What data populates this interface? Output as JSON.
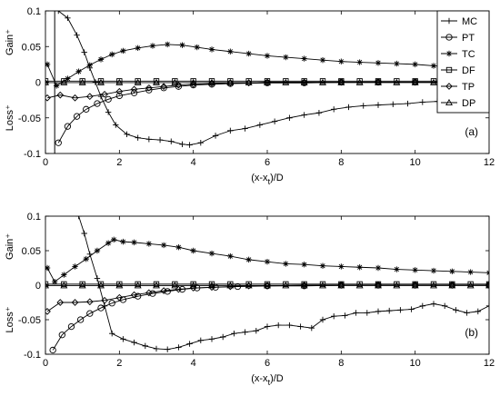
{
  "chart_data": [
    {
      "type": "line",
      "panel_label": "(a)",
      "xlabel": "(x-x_t)/D",
      "ylabel_top": "Gain⁺",
      "ylabel_bottom": "Loss⁺",
      "xlim": [
        0,
        12
      ],
      "ylim": [
        -0.1,
        0.1
      ],
      "xticks": [
        0,
        2,
        4,
        6,
        8,
        10,
        12
      ],
      "yticks": [
        -0.1,
        -0.05,
        0,
        0.05,
        0.1
      ],
      "ytick_labels": [
        "-0.1",
        "-0.05",
        "0",
        "0.05",
        "0.1"
      ],
      "grid": false,
      "legend_position": "top-right",
      "vertical_line_x": 0.25,
      "series": [
        {
          "name": "MC",
          "marker": "plus",
          "x": [
            0.35,
            0.6,
            0.85,
            1.05,
            1.2,
            1.35,
            1.5,
            1.7,
            1.9,
            2.2,
            2.5,
            2.8,
            3.1,
            3.4,
            3.7,
            3.9,
            4.2,
            4.6,
            5.0,
            5.4,
            5.8,
            6.2,
            6.6,
            7.0,
            7.4,
            7.8,
            8.2,
            8.6,
            9.0,
            9.4,
            9.8,
            10.2,
            10.6,
            11.0,
            11.4,
            11.8,
            12.0
          ],
          "y": [
            0.1,
            0.09,
            0.066,
            0.042,
            0.02,
            0.0,
            -0.02,
            -0.042,
            -0.06,
            -0.073,
            -0.078,
            -0.08,
            -0.081,
            -0.083,
            -0.087,
            -0.088,
            -0.085,
            -0.075,
            -0.068,
            -0.065,
            -0.06,
            -0.055,
            -0.05,
            -0.046,
            -0.043,
            -0.038,
            -0.035,
            -0.033,
            -0.032,
            -0.031,
            -0.03,
            -0.028,
            -0.027,
            -0.028,
            -0.028,
            -0.03,
            -0.032
          ]
        },
        {
          "name": "PT",
          "marker": "circle",
          "x": [
            0.35,
            0.6,
            0.85,
            1.1,
            1.4,
            1.7,
            2.0,
            2.4,
            2.8,
            3.2,
            3.6,
            4.0,
            4.5,
            5.0,
            6.0,
            7.0,
            8.0,
            9.0,
            10.0,
            11.0,
            12.0
          ],
          "y": [
            -0.085,
            -0.062,
            -0.048,
            -0.038,
            -0.03,
            -0.024,
            -0.019,
            -0.015,
            -0.011,
            -0.008,
            -0.006,
            -0.004,
            -0.003,
            -0.002,
            -0.001,
            -0.001,
            0.0,
            0.0,
            0.0,
            0.0,
            0.0
          ]
        },
        {
          "name": "TC",
          "marker": "asterisk",
          "x": [
            0.05,
            0.3,
            0.6,
            0.9,
            1.2,
            1.5,
            1.8,
            2.1,
            2.5,
            2.9,
            3.3,
            3.7,
            4.1,
            4.5,
            5.0,
            5.5,
            6.0,
            6.5,
            7.0,
            7.5,
            8.0,
            8.5,
            9.0,
            9.5,
            10.0,
            10.5,
            11.0,
            11.5,
            12.0
          ],
          "y": [
            0.025,
            -0.005,
            0.005,
            0.015,
            0.024,
            0.032,
            0.039,
            0.044,
            0.048,
            0.051,
            0.053,
            0.052,
            0.049,
            0.046,
            0.043,
            0.04,
            0.037,
            0.035,
            0.033,
            0.031,
            0.029,
            0.028,
            0.027,
            0.026,
            0.025,
            0.023,
            0.021,
            0.019,
            0.017
          ]
        },
        {
          "name": "DF",
          "marker": "square",
          "x": [
            0,
            0.5,
            1,
            1.5,
            2,
            2.5,
            3,
            3.5,
            4,
            4.5,
            5,
            5.5,
            6,
            6.5,
            7,
            7.5,
            8,
            8.5,
            9,
            9.5,
            10,
            10.5,
            11,
            11.5,
            12
          ],
          "y": [
            0.0015,
            0.0015,
            0.0015,
            0.0015,
            0.0015,
            0.0015,
            0.0015,
            0.0015,
            0.0015,
            0.0015,
            0.0015,
            0.0015,
            0.0015,
            0.0015,
            0.0015,
            0.0015,
            0.0015,
            0.0015,
            0.0015,
            0.0015,
            0.0015,
            0.0015,
            0.0015,
            0.0015,
            0.0015
          ]
        },
        {
          "name": "TP",
          "marker": "diamond",
          "x": [
            0.05,
            0.4,
            0.8,
            1.2,
            1.6,
            2.0,
            2.4,
            2.8,
            3.2,
            3.6,
            4.0,
            4.5,
            5.0,
            5.5,
            6.0,
            7.0,
            8.0,
            9.0,
            10.0,
            11.0,
            12.0
          ],
          "y": [
            -0.022,
            -0.018,
            -0.022,
            -0.02,
            -0.017,
            -0.013,
            -0.01,
            -0.008,
            -0.006,
            -0.004,
            -0.003,
            -0.002,
            -0.001,
            -0.001,
            0.0,
            0.0,
            0.0,
            0.0,
            0.0,
            0.0,
            0.0
          ]
        },
        {
          "name": "DP",
          "marker": "triangle",
          "x": [
            0,
            0.5,
            1,
            1.5,
            2,
            2.5,
            3,
            3.5,
            4,
            4.5,
            5,
            5.5,
            6,
            6.5,
            7,
            7.5,
            8,
            8.5,
            9,
            9.5,
            10,
            10.5,
            11,
            11.5,
            12
          ],
          "y": [
            -0.0005,
            -0.0005,
            -0.0005,
            -0.0005,
            -0.0005,
            -0.0005,
            -0.0005,
            -0.0005,
            -0.0005,
            -0.0005,
            -0.0005,
            -0.0005,
            -0.0005,
            -0.0005,
            -0.0005,
            -0.0005,
            -0.0005,
            -0.0005,
            -0.0005,
            -0.0005,
            -0.0005,
            -0.0005,
            -0.0005,
            -0.0005,
            -0.0005
          ]
        }
      ]
    },
    {
      "type": "line",
      "panel_label": "(b)",
      "xlabel": "(x-x_t)/D",
      "ylabel_top": "Gain⁺",
      "ylabel_bottom": "Loss⁺",
      "xlim": [
        0,
        12
      ],
      "ylim": [
        -0.1,
        0.1
      ],
      "xticks": [
        0,
        2,
        4,
        6,
        8,
        10,
        12
      ],
      "yticks": [
        -0.1,
        -0.05,
        0,
        0.05,
        0.1
      ],
      "ytick_labels": [
        "-0.1",
        "-0.05",
        "0",
        "0.05",
        "0.1"
      ],
      "grid": false,
      "legend_position": "none",
      "series": [
        {
          "name": "MC",
          "marker": "plus",
          "x": [
            0.9,
            1.05,
            1.2,
            1.4,
            1.6,
            1.8,
            2.1,
            2.4,
            2.7,
            3.0,
            3.3,
            3.6,
            3.9,
            4.2,
            4.5,
            4.8,
            5.1,
            5.4,
            5.7,
            6.0,
            6.3,
            6.6,
            6.9,
            7.2,
            7.5,
            7.8,
            8.1,
            8.4,
            8.7,
            9.0,
            9.3,
            9.6,
            9.9,
            10.2,
            10.5,
            10.8,
            11.1,
            11.4,
            11.7,
            12.0
          ],
          "y": [
            0.1,
            0.075,
            0.045,
            0.01,
            -0.03,
            -0.07,
            -0.078,
            -0.083,
            -0.088,
            -0.092,
            -0.093,
            -0.09,
            -0.085,
            -0.08,
            -0.078,
            -0.075,
            -0.07,
            -0.068,
            -0.066,
            -0.06,
            -0.058,
            -0.058,
            -0.06,
            -0.062,
            -0.05,
            -0.045,
            -0.044,
            -0.04,
            -0.04,
            -0.038,
            -0.037,
            -0.036,
            -0.035,
            -0.03,
            -0.027,
            -0.03,
            -0.036,
            -0.04,
            -0.038,
            -0.03
          ]
        },
        {
          "name": "PT",
          "marker": "circle",
          "x": [
            0.2,
            0.45,
            0.7,
            0.95,
            1.2,
            1.5,
            1.8,
            2.1,
            2.5,
            2.9,
            3.3,
            3.7,
            4.1,
            4.6,
            5.2,
            6.0,
            7.0,
            8.0,
            9.0,
            10.0,
            11.0,
            12.0
          ],
          "y": [
            -0.094,
            -0.072,
            -0.06,
            -0.05,
            -0.041,
            -0.033,
            -0.026,
            -0.021,
            -0.016,
            -0.012,
            -0.009,
            -0.006,
            -0.004,
            -0.003,
            -0.002,
            -0.001,
            -0.001,
            0.0,
            0.0,
            0.0,
            0.0,
            0.0
          ]
        },
        {
          "name": "TC",
          "marker": "asterisk",
          "x": [
            0.05,
            0.25,
            0.5,
            0.8,
            1.1,
            1.4,
            1.7,
            1.85,
            2.1,
            2.4,
            2.8,
            3.2,
            3.6,
            4.0,
            4.5,
            5.0,
            5.5,
            6.0,
            6.5,
            7.0,
            7.5,
            8.0,
            8.5,
            9.0,
            9.5,
            10.0,
            10.5,
            11.0,
            11.5,
            12.0
          ],
          "y": [
            0.025,
            0.005,
            0.015,
            0.027,
            0.038,
            0.05,
            0.061,
            0.066,
            0.063,
            0.062,
            0.06,
            0.058,
            0.055,
            0.05,
            0.046,
            0.042,
            0.037,
            0.034,
            0.031,
            0.03,
            0.028,
            0.027,
            0.026,
            0.025,
            0.023,
            0.022,
            0.021,
            0.02,
            0.019,
            0.018
          ]
        },
        {
          "name": "DF",
          "marker": "square",
          "x": [
            0,
            0.5,
            1,
            1.5,
            2,
            2.5,
            3,
            3.5,
            4,
            4.5,
            5,
            5.5,
            6,
            6.5,
            7,
            7.5,
            8,
            8.5,
            9,
            9.5,
            10,
            10.5,
            11,
            11.5,
            12
          ],
          "y": [
            0.0015,
            0.0015,
            0.0015,
            0.0015,
            0.0015,
            0.0015,
            0.0015,
            0.0015,
            0.0015,
            0.0015,
            0.0015,
            0.0015,
            0.0015,
            0.0015,
            0.0015,
            0.0015,
            0.0015,
            0.0015,
            0.0015,
            0.0015,
            0.0015,
            0.0015,
            0.0015,
            0.0015,
            0.0015
          ]
        },
        {
          "name": "TP",
          "marker": "diamond",
          "x": [
            0.05,
            0.4,
            0.8,
            1.2,
            1.6,
            2.0,
            2.4,
            2.8,
            3.2,
            3.6,
            4.0,
            4.5,
            5.0,
            5.5,
            6.0,
            7.0,
            8.0,
            9.0,
            10.0,
            11.0,
            12.0
          ],
          "y": [
            -0.038,
            -0.025,
            -0.025,
            -0.024,
            -0.022,
            -0.018,
            -0.014,
            -0.011,
            -0.008,
            -0.006,
            -0.004,
            -0.003,
            -0.002,
            -0.001,
            -0.001,
            0.0,
            0.0,
            0.0,
            0.0,
            0.0,
            0.0
          ]
        },
        {
          "name": "DP",
          "marker": "triangle",
          "x": [
            0,
            0.5,
            1,
            1.5,
            2,
            2.5,
            3,
            3.5,
            4,
            4.5,
            5,
            5.5,
            6,
            6.5,
            7,
            7.5,
            8,
            8.5,
            9,
            9.5,
            10,
            10.5,
            11,
            11.5,
            12
          ],
          "y": [
            -0.0005,
            -0.0005,
            -0.0005,
            -0.0005,
            -0.0005,
            -0.0005,
            -0.0005,
            -0.0005,
            -0.0005,
            -0.0005,
            -0.0005,
            -0.0005,
            -0.0005,
            -0.0005,
            -0.0005,
            -0.0005,
            -0.0005,
            -0.0005,
            -0.0005,
            -0.0005,
            -0.0005,
            -0.0005,
            -0.0005,
            -0.0005,
            -0.0005
          ]
        }
      ]
    }
  ]
}
